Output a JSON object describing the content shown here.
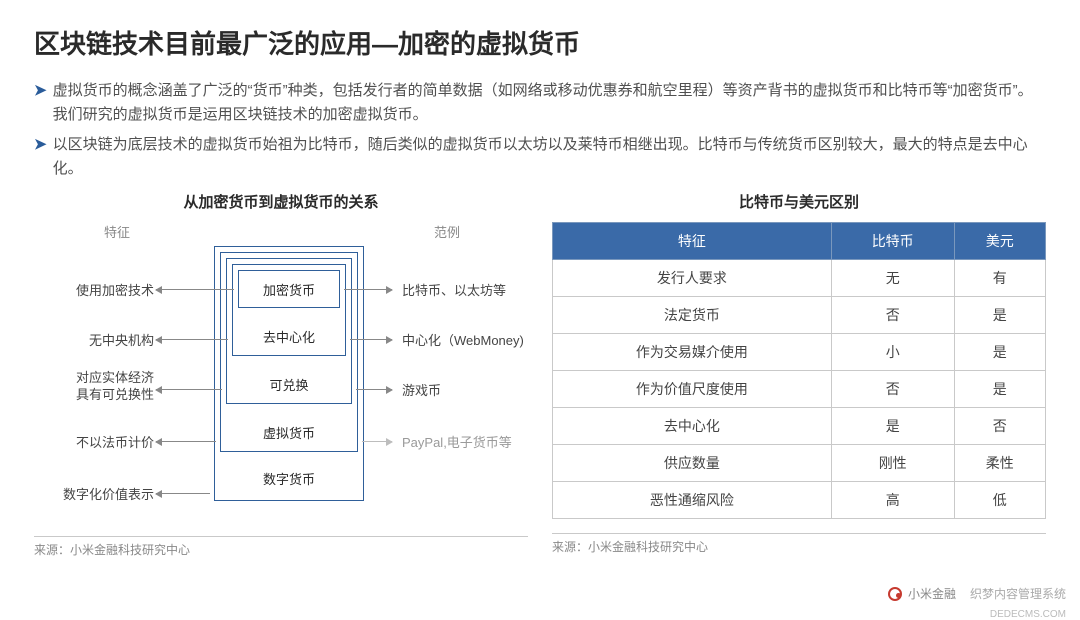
{
  "title": "区块链技术目前最广泛的应用—加密的虚拟货币",
  "bullets": [
    "虚拟货币的概念涵盖了广泛的“货币”种类，包括发行者的简单数据（如网络或移动优惠券和航空里程）等资产背书的虚拟货币和比特币等“加密货币”。我们研究的虚拟货币是运用区块链技术的加密虚拟货币。",
    "以区块链为底层技术的虚拟货币始祖为比特币，随后类似的虚拟货币以太坊以及莱特币相继出现。比特币与传统货币区别较大，最大的特点是去中心化。"
  ],
  "left": {
    "heading": "从加密货币到虚拟货币的关系",
    "col_labels": {
      "feature": "特征",
      "example": "范例"
    },
    "nested": [
      "加密货币",
      "去中心化",
      "可兑换",
      "虚拟货币",
      "数字货币"
    ],
    "features": [
      "使用加密技术",
      "无中央机构",
      "对应实体经济\n具有可兑换性",
      "不以法币计价",
      "数字化价值表示"
    ],
    "examples": [
      "比特币、以太坊等",
      "中心化（WebMoney)",
      "游戏币",
      "PayPal,电子货币等"
    ],
    "source": "来源：小米金融科技研究中心"
  },
  "right": {
    "heading": "比特币与美元区别",
    "columns": [
      "特征",
      "比特币",
      "美元"
    ],
    "rows": [
      [
        "发行人要求",
        "无",
        "有"
      ],
      [
        "法定货币",
        "否",
        "是"
      ],
      [
        "作为交易媒介使用",
        "小",
        "是"
      ],
      [
        "作为价值尺度使用",
        "否",
        "是"
      ],
      [
        "去中心化",
        "是",
        "否"
      ],
      [
        "供应数量",
        "刚性",
        "柔性"
      ],
      [
        "恶性通缩风险",
        "高",
        "低"
      ]
    ],
    "source": "来源：小米金融科技研究中心"
  },
  "footer_brand": "小米金融",
  "footer_system": "织梦内容管理系统",
  "footer_url": "DEDECMS.COM",
  "colors": {
    "header_bg": "#3a6aa8",
    "border": "#2f5f99",
    "text": "#3a3a3a",
    "muted": "#888888"
  }
}
